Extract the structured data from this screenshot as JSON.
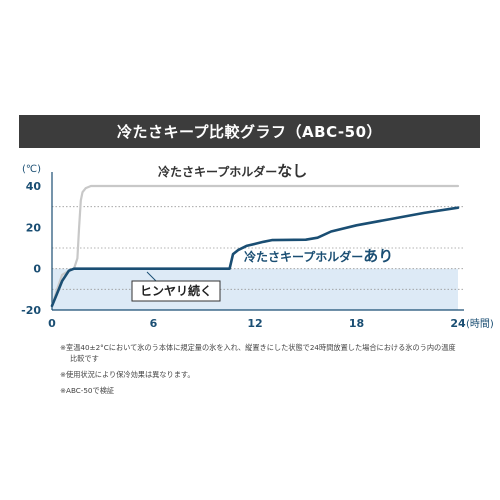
{
  "title": "冷たさキープ比較グラフ（ABC-50）",
  "chart_data": {
    "type": "line",
    "y_unit": "(℃)",
    "x_unit": "(時間)",
    "xlim": [
      0,
      24
    ],
    "ylim": [
      -20,
      40
    ],
    "x_ticks": [
      "0",
      "6",
      "12",
      "18",
      "24"
    ],
    "y_ticks": [
      "40",
      "20",
      "0",
      "-20"
    ],
    "series": [
      {
        "name": "冷たさキープホルダーなし",
        "name_prefix": "冷たさキープホルダー",
        "name_suffix": "なし",
        "color": "#c8c8c8",
        "x": [
          0,
          0.3,
          0.6,
          1.0,
          1.3,
          1.5,
          1.6,
          1.7,
          1.8,
          2.0,
          2.3,
          3.0,
          6,
          12,
          18,
          24
        ],
        "y": [
          -18,
          -10,
          -3,
          -1,
          0,
          5,
          20,
          33,
          37,
          39,
          40,
          40,
          40,
          40,
          40,
          40
        ]
      },
      {
        "name": "冷たさキープホルダーあり",
        "name_prefix": "冷たさキープホルダー",
        "name_suffix": "あり",
        "color": "#1a4e73",
        "x": [
          0,
          0.3,
          0.6,
          1.0,
          1.3,
          2,
          6,
          10.5,
          10.7,
          11,
          11.5,
          12,
          12.5,
          13,
          15,
          15.7,
          16.5,
          18,
          20,
          22,
          24
        ],
        "y": [
          -18,
          -12,
          -6,
          -1,
          0,
          0,
          0,
          0,
          7,
          9,
          11,
          12,
          13,
          13.8,
          14,
          15,
          18,
          21,
          24,
          27,
          29.5
        ]
      }
    ],
    "annotation": "ヒンヤリ続く",
    "shaded_region": {
      "y_from": -20,
      "y_to": 0,
      "color": "#ddeaf6"
    },
    "dotted_gridlines": [
      30,
      10,
      0,
      -10
    ]
  },
  "notes": [
    "※室温40±2°Cにおいて氷のう本体に規定量の氷を入れ、縦置きにした状態で24時間放置した場合における氷のう内の温度",
    "比較です",
    "※使用状況により保冷効果は異なります。",
    "※ABC-50で検証"
  ]
}
